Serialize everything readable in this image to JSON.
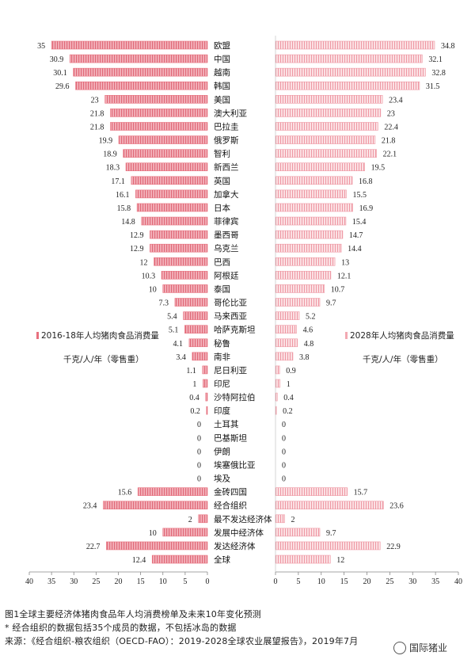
{
  "colors": {
    "bar_left": "#e8707e",
    "bar_left_light": "#f6c2c8",
    "bar_right": "#f2a9b2",
    "axis": "#888888"
  },
  "chart_data": {
    "type": "bar",
    "orientation": "horizontal",
    "categories": [
      "欧盟",
      "中国",
      "越南",
      "韩国",
      "美国",
      "澳大利亚",
      "巴拉圭",
      "俄罗斯",
      "智利",
      "新西兰",
      "英国",
      "加拿大",
      "日本",
      "菲律宾",
      "墨西哥",
      "乌克兰",
      "巴西",
      "阿根廷",
      "泰国",
      "哥伦比亚",
      "马来西亚",
      "哈萨克斯坦",
      "秘鲁",
      "南非",
      "尼日利亚",
      "印尼",
      "沙特阿拉伯",
      "印度",
      "土耳其",
      "巴基斯坦",
      "伊朗",
      "埃塞俄比亚",
      "埃及",
      "金砖四国",
      "经合组织",
      "最不发达经济体",
      "发展中经济体",
      "发达经济体",
      "全球"
    ],
    "series": [
      {
        "name": "2016-18年人均猪肉食品消费量",
        "values": [
          35,
          30.9,
          30.1,
          29.6,
          23,
          21.8,
          21.8,
          19.9,
          18.9,
          18.3,
          17.1,
          16.1,
          15.8,
          14.8,
          12.9,
          12.9,
          12,
          10.3,
          10,
          7.3,
          5.4,
          5.1,
          4.1,
          3.4,
          1.1,
          1,
          0.4,
          0.2,
          0,
          0,
          0,
          0,
          0,
          15.6,
          23.4,
          2,
          10,
          22.7,
          12.4
        ]
      },
      {
        "name": "2028年人均猪肉食品消费量",
        "values": [
          34.8,
          32.1,
          32.8,
          31.5,
          23.4,
          23,
          22.4,
          21.8,
          22.1,
          19.5,
          16.8,
          15.5,
          16.9,
          15.4,
          14.7,
          14.4,
          13,
          12.1,
          10.7,
          9.7,
          5.2,
          4.6,
          4.8,
          3.8,
          0.9,
          1,
          0.4,
          0.2,
          0,
          0,
          0,
          0,
          0,
          15.7,
          23.6,
          2,
          9.7,
          22.9,
          12
        ]
      }
    ],
    "left_axis": {
      "ticks": [
        "40",
        "35",
        "30",
        "25",
        "20",
        "15",
        "10",
        "5",
        "0"
      ],
      "xlim": [
        40,
        0
      ]
    },
    "right_axis": {
      "ticks": [
        "0",
        "5",
        "10",
        "15",
        "20",
        "25",
        "30",
        "35",
        "40"
      ],
      "xlim": [
        0,
        40
      ]
    },
    "legend_left": {
      "title": "2016-18年人均猪肉食品消费量",
      "unit": "千克/人/年（零售重）"
    },
    "legend_right": {
      "title": "2028年人均猪肉食品消费量",
      "unit": "千克/人/年（零售重）"
    }
  },
  "caption": {
    "line1": "图1全球主要经济体猪肉食品年人均消费榜单及未来10年变化预测",
    "line2": "* 经合组织的数据包括35个成员的数据，不包括冰岛的数据",
    "line3": "来源：《经合组织-粮农组织（OECD-FAO）：2019-2028全球农业展望报告》，2019年7月"
  },
  "watermark": {
    "text": "国际猪业",
    "icon": "chat-bubble-icon"
  }
}
